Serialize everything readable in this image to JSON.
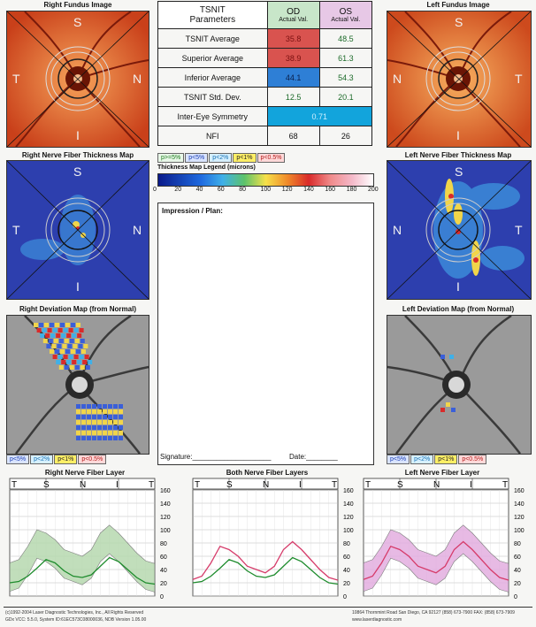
{
  "panels": {
    "right_fundus_title": "Right Fundus Image",
    "left_fundus_title": "Left Fundus Image",
    "right_thickness_title": "Right Nerve Fiber Thickness Map",
    "left_thickness_title": "Left Nerve Fiber Thickness Map",
    "right_deviation_title": "Right Deviation Map (from Normal)",
    "left_deviation_title": "Left Deviation Map (from Normal)"
  },
  "quadrant_labels": {
    "s": "S",
    "n": "N",
    "i": "I",
    "t": "T"
  },
  "table": {
    "header": {
      "param_line1": "TSNIT",
      "param_line2": "Parameters",
      "od": "OD",
      "os": "OS",
      "actual": "Actual Val."
    },
    "rows": [
      {
        "name": "TSNIT Average",
        "od": "35.8",
        "os": "48.5"
      },
      {
        "name": "Superior Average",
        "od": "38.9",
        "os": "61.3"
      },
      {
        "name": "Inferior Average",
        "od": "44.1",
        "os": "54.3"
      },
      {
        "name": "TSNIT Std. Dev.",
        "od": "12.5",
        "os": "20.1"
      }
    ],
    "symmetry": {
      "name": "Inter-Eye Symmetry",
      "value": "0.71"
    },
    "nfi": {
      "name": "NFI",
      "od": "68",
      "os": "26"
    }
  },
  "prob_legend": [
    "p>=5%",
    "p<5%",
    "p<2%",
    "p<1%",
    "p<0.5%"
  ],
  "dev_legend": [
    "p<5%",
    "p<2%",
    "p<1%",
    "p<0.5%"
  ],
  "thickness_legend": {
    "title": "Thickness Map Legend (microns)",
    "ticks": [
      "0",
      "20",
      "40",
      "60",
      "80",
      "100",
      "120",
      "140",
      "160",
      "180",
      "200"
    ]
  },
  "impression": {
    "label": "Impression / Plan:",
    "signature": "Signature:____________________",
    "date": "Date:________"
  },
  "graphs": {
    "right_title": "Right Nerve Fiber Layer",
    "both_title": "Both Nerve Fiber Layers",
    "left_title": "Left Nerve Fiber Layer",
    "axis_letters": [
      "T",
      "S",
      "N",
      "I",
      "T"
    ],
    "y_ticks": [
      "160",
      "140",
      "120",
      "100",
      "80",
      "60",
      "40",
      "20",
      "0"
    ]
  },
  "chart_data": [
    {
      "type": "line",
      "title": "Right Nerve Fiber Layer",
      "ylim": [
        0,
        160
      ],
      "x": [
        0,
        1,
        2,
        3,
        4,
        5,
        6,
        7,
        8,
        9,
        10,
        11,
        12,
        13,
        14,
        15,
        16
      ],
      "series": [
        {
          "values": [
            20,
            22,
            30,
            42,
            55,
            50,
            38,
            30,
            28,
            32,
            45,
            58,
            52,
            40,
            28,
            20,
            18
          ]
        }
      ]
    },
    {
      "type": "line",
      "title": "Both Nerve Fiber Layers",
      "ylim": [
        0,
        160
      ],
      "x": [
        0,
        1,
        2,
        3,
        4,
        5,
        6,
        7,
        8,
        9,
        10,
        11,
        12,
        13,
        14,
        15,
        16
      ],
      "series": [
        {
          "values": [
            20,
            22,
            30,
            42,
            55,
            50,
            38,
            30,
            28,
            32,
            45,
            58,
            52,
            40,
            28,
            20,
            18
          ]
        },
        {
          "values": [
            25,
            30,
            50,
            75,
            70,
            60,
            45,
            40,
            35,
            45,
            70,
            82,
            70,
            55,
            40,
            28,
            24
          ]
        }
      ]
    },
    {
      "type": "line",
      "title": "Left Nerve Fiber Layer",
      "ylim": [
        0,
        160
      ],
      "x": [
        0,
        1,
        2,
        3,
        4,
        5,
        6,
        7,
        8,
        9,
        10,
        11,
        12,
        13,
        14,
        15,
        16
      ],
      "series": [
        {
          "values": [
            25,
            30,
            50,
            75,
            70,
            60,
            45,
            40,
            35,
            45,
            70,
            82,
            70,
            55,
            40,
            28,
            24
          ]
        }
      ]
    }
  ],
  "footer": {
    "left1": "(c)1992-2004 Laser Diagnostic Technologies, Inc., All Rights Reserved",
    "left2": "GDx VCC: 5.5.0, System ID:61EC573C08000036, NDB Version 1.05.00",
    "right1": "10864 Thornmint Road  San Diego, CA 92127  (858) 673-7900  FAX: (858) 673-7909",
    "right2": "www.laserdiagnostic.com"
  },
  "colors": {
    "od_header": "#c8e6c9",
    "os_header": "#e7c8e6",
    "low": "#d9534f",
    "borderline": "#2e7fd6",
    "symmetry": "#12a4dc"
  }
}
